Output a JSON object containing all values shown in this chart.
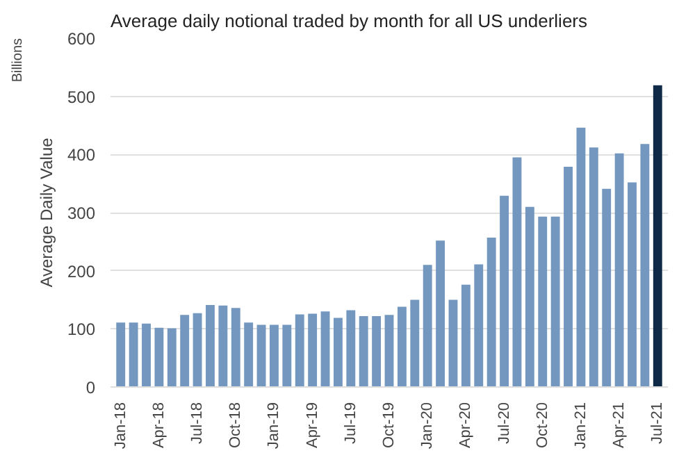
{
  "chart_data": {
    "type": "bar",
    "title": "Average daily notional traded by month for all US underliers",
    "ylabel": "Average Daily Value",
    "y2label": "Billions",
    "categories": [
      "Jan-18",
      null,
      null,
      "Apr-18",
      null,
      null,
      "Jul-18",
      null,
      null,
      "Oct-18",
      null,
      null,
      "Jan-19",
      null,
      null,
      "Apr-19",
      null,
      null,
      "Jul-19",
      null,
      null,
      "Oct-19",
      null,
      null,
      "Jan-20",
      null,
      null,
      "Apr-20",
      null,
      null,
      "Jul-20",
      null,
      null,
      "Oct-20",
      null,
      null,
      "Jan-21",
      null,
      null,
      "Apr-21",
      null,
      null,
      "Jul-21"
    ],
    "values": [
      111,
      111,
      109,
      102,
      101,
      124,
      127,
      141,
      140,
      136,
      111,
      107,
      107,
      107,
      125,
      126,
      130,
      119,
      132,
      122,
      122,
      124,
      138,
      150,
      210,
      252,
      150,
      176,
      211,
      257,
      329,
      395,
      310,
      293,
      293,
      379,
      446,
      412,
      341,
      402,
      352,
      418,
      519
    ],
    "colors": [
      "#7397bf",
      "#7397bf",
      "#7397bf",
      "#7397bf",
      "#7397bf",
      "#7397bf",
      "#7397bf",
      "#7397bf",
      "#7397bf",
      "#7397bf",
      "#7397bf",
      "#7397bf",
      "#7397bf",
      "#7397bf",
      "#7397bf",
      "#7397bf",
      "#7397bf",
      "#7397bf",
      "#7397bf",
      "#7397bf",
      "#7397bf",
      "#7397bf",
      "#7397bf",
      "#7397bf",
      "#7397bf",
      "#7397bf",
      "#7397bf",
      "#7397bf",
      "#7397bf",
      "#7397bf",
      "#7397bf",
      "#7397bf",
      "#7397bf",
      "#7397bf",
      "#7397bf",
      "#7397bf",
      "#7397bf",
      "#7397bf",
      "#7397bf",
      "#7397bf",
      "#7397bf",
      "#7397bf",
      "#0e2a47"
    ],
    "ylim": [
      0,
      600
    ],
    "yticks": [
      0,
      100,
      200,
      300,
      400,
      500,
      600
    ],
    "grid": "y"
  }
}
